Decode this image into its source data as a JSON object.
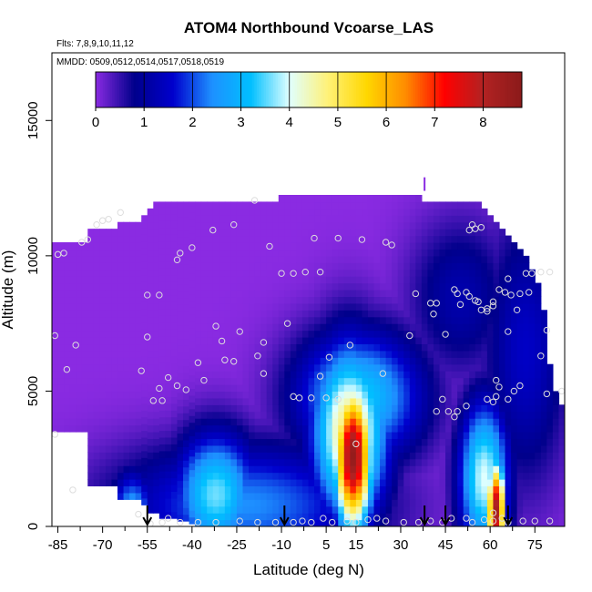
{
  "chart_data": {
    "type": "heatmap",
    "title": "ATOM4 Northbound Vcoarse_LAS",
    "flights_note": "Flts: 7,8,9,10,11,12",
    "date_note": "MMDD: 0509,0512,0514,0517,0518,0519",
    "xlabel": "Latitude (deg N)",
    "ylabel": "Altitude (m)",
    "xlim": [
      -87,
      85
    ],
    "ylim": [
      0,
      17500
    ],
    "x_ticks": [
      -85,
      -70,
      -55,
      -40,
      -25,
      -10,
      5,
      15,
      30,
      45,
      60,
      75
    ],
    "y_ticks": [
      0,
      5000,
      10000,
      15000
    ],
    "colorbar": {
      "min": 0,
      "max": 8.8,
      "ticks": [
        0,
        1,
        2,
        3,
        4,
        5,
        6,
        7,
        8
      ],
      "colors": [
        "#8A2BE2",
        "#00008B",
        "#0000CD",
        "#1E90FF",
        "#00BFFF",
        "#E0FFFF",
        "#FFF176",
        "#FFD700",
        "#FF8C00",
        "#FF0000",
        "#B22222",
        "#8B1A1A"
      ]
    },
    "field": {
      "lat_start": -86,
      "lat_step": 2,
      "alt_step": 250,
      "ceiling_m": [
        10500,
        10500,
        10500,
        10500,
        10500,
        10500,
        11000,
        11000,
        11000,
        11000,
        11000,
        11250,
        11250,
        11250,
        11250,
        11500,
        11750,
        12000,
        12000,
        12000,
        12000,
        12000,
        12000,
        12000,
        12000,
        12000,
        12000,
        12000,
        12000,
        12000,
        12000,
        12000,
        12000,
        12000,
        12000,
        12000,
        12000,
        12000,
        12250,
        12250,
        12250,
        12250,
        12250,
        12250,
        12250,
        12250,
        12250,
        12250,
        12250,
        12250,
        12250,
        12250,
        12250,
        12250,
        12250,
        12250,
        12250,
        12250,
        12250,
        12250,
        12250,
        12250,
        12000,
        12000,
        12000,
        12000,
        12000,
        12000,
        12000,
        12000,
        12000,
        12000,
        11750,
        11500,
        11250,
        11000,
        10750,
        10500,
        10250,
        10000,
        9500,
        9000,
        8000,
        6000,
        5000,
        4500
      ],
      "floor_m": [
        3500,
        3500,
        3500,
        3500,
        3500,
        3500,
        1500,
        1500,
        1500,
        1500,
        1500,
        1000,
        1000,
        1000,
        1000,
        800,
        500,
        500,
        300,
        300,
        300,
        200,
        200,
        100,
        0,
        0,
        0,
        0,
        0,
        0,
        0,
        0,
        0,
        0,
        0,
        0,
        0,
        0,
        0,
        0,
        0,
        0,
        0,
        0,
        0,
        0,
        0,
        0,
        0,
        0,
        0,
        0,
        0,
        0,
        0,
        0,
        0,
        0,
        0,
        0,
        0,
        0,
        0,
        0,
        0,
        0,
        0,
        0,
        0,
        0,
        0,
        0,
        0,
        0,
        0,
        0,
        0,
        0,
        0,
        0,
        0,
        0,
        0,
        0,
        0,
        0
      ]
    },
    "samples": [
      {
        "lat": -85,
        "alt": 10050
      },
      {
        "lat": -83,
        "alt": 10100
      },
      {
        "lat": -77,
        "alt": 10500
      },
      {
        "lat": -75,
        "alt": 10600
      },
      {
        "lat": -72,
        "alt": 11150
      },
      {
        "lat": -70,
        "alt": 11300
      },
      {
        "lat": -68,
        "alt": 11350
      },
      {
        "lat": -64,
        "alt": 11600
      },
      {
        "lat": -45,
        "alt": 9850
      },
      {
        "lat": -44,
        "alt": 10100
      },
      {
        "lat": -40,
        "alt": 10300
      },
      {
        "lat": -33,
        "alt": 10950
      },
      {
        "lat": -26,
        "alt": 11150
      },
      {
        "lat": -19,
        "alt": 12050
      },
      {
        "lat": -14,
        "alt": 10350
      },
      {
        "lat": 1,
        "alt": 10650
      },
      {
        "lat": 9,
        "alt": 10650
      },
      {
        "lat": 17,
        "alt": 10600
      },
      {
        "lat": 25,
        "alt": 10500
      },
      {
        "lat": 27,
        "alt": 10400
      },
      {
        "lat": -10,
        "alt": 9350
      },
      {
        "lat": -6,
        "alt": 9350
      },
      {
        "lat": -2,
        "alt": 9400
      },
      {
        "lat": 3,
        "alt": 9400
      },
      {
        "lat": 53,
        "alt": 10950
      },
      {
        "lat": 54,
        "alt": 11150
      },
      {
        "lat": 55,
        "alt": 11000
      },
      {
        "lat": 57,
        "alt": 11050
      },
      {
        "lat": -55,
        "alt": 8550
      },
      {
        "lat": -51,
        "alt": 8550
      },
      {
        "lat": -32,
        "alt": 7400
      },
      {
        "lat": -8,
        "alt": 7500
      },
      {
        "lat": -55,
        "alt": 7000
      },
      {
        "lat": -79,
        "alt": 6700
      },
      {
        "lat": -86,
        "alt": 7050
      },
      {
        "lat": -30,
        "alt": 6850
      },
      {
        "lat": -24,
        "alt": 7200
      },
      {
        "lat": -16,
        "alt": 6800
      },
      {
        "lat": -38,
        "alt": 6050
      },
      {
        "lat": -29,
        "alt": 6150
      },
      {
        "lat": -26,
        "alt": 6100
      },
      {
        "lat": -18,
        "alt": 6300
      },
      {
        "lat": -82,
        "alt": 5800
      },
      {
        "lat": -57,
        "alt": 5750
      },
      {
        "lat": -48,
        "alt": 5500
      },
      {
        "lat": -45,
        "alt": 5200
      },
      {
        "lat": -51,
        "alt": 5100
      },
      {
        "lat": -53,
        "alt": 4650
      },
      {
        "lat": -50,
        "alt": 4650
      },
      {
        "lat": -42,
        "alt": 5050
      },
      {
        "lat": -36,
        "alt": 5400
      },
      {
        "lat": -16,
        "alt": 5650
      },
      {
        "lat": -6,
        "alt": 4800
      },
      {
        "lat": -4,
        "alt": 4750
      },
      {
        "lat": 0,
        "alt": 4750
      },
      {
        "lat": 3,
        "alt": 5550
      },
      {
        "lat": 5,
        "alt": 4750
      },
      {
        "lat": 9,
        "alt": 4700
      },
      {
        "lat": 6,
        "alt": 6250
      },
      {
        "lat": 13,
        "alt": 6700
      },
      {
        "lat": 24,
        "alt": 5650
      },
      {
        "lat": 33,
        "alt": 7050
      },
      {
        "lat": 35,
        "alt": 8600
      },
      {
        "lat": 40,
        "alt": 8250
      },
      {
        "lat": 41,
        "alt": 7850
      },
      {
        "lat": 42,
        "alt": 8250
      },
      {
        "lat": 45,
        "alt": 7100
      },
      {
        "lat": 48,
        "alt": 8750
      },
      {
        "lat": 49,
        "alt": 8600
      },
      {
        "lat": 50,
        "alt": 8200
      },
      {
        "lat": 52,
        "alt": 8650
      },
      {
        "lat": 53,
        "alt": 8500
      },
      {
        "lat": 55,
        "alt": 8350
      },
      {
        "lat": 57,
        "alt": 8000
      },
      {
        "lat": 56,
        "alt": 8300
      },
      {
        "lat": 59,
        "alt": 8050
      },
      {
        "lat": 59,
        "alt": 7950
      },
      {
        "lat": 61,
        "alt": 8300
      },
      {
        "lat": 61,
        "alt": 8150
      },
      {
        "lat": 63,
        "alt": 8750
      },
      {
        "lat": 65,
        "alt": 8650
      },
      {
        "lat": 66,
        "alt": 9150
      },
      {
        "lat": 67,
        "alt": 8550
      },
      {
        "lat": 70,
        "alt": 8600
      },
      {
        "lat": 72,
        "alt": 9350
      },
      {
        "lat": 74,
        "alt": 9350
      },
      {
        "lat": 73,
        "alt": 8650
      },
      {
        "lat": 69,
        "alt": 8000
      },
      {
        "lat": 77,
        "alt": 9400
      },
      {
        "lat": 80,
        "alt": 9400
      },
      {
        "lat": 66,
        "alt": 7200
      },
      {
        "lat": 77,
        "alt": 6300
      },
      {
        "lat": 79,
        "alt": 7250
      },
      {
        "lat": 62,
        "alt": 5400
      },
      {
        "lat": 63,
        "alt": 5150
      },
      {
        "lat": 62,
        "alt": 4800
      },
      {
        "lat": 59,
        "alt": 4700
      },
      {
        "lat": 61,
        "alt": 4600
      },
      {
        "lat": 66,
        "alt": 4700
      },
      {
        "lat": 68,
        "alt": 5000
      },
      {
        "lat": 70,
        "alt": 5200
      },
      {
        "lat": 79,
        "alt": 4900
      },
      {
        "lat": 84,
        "alt": 5000
      },
      {
        "lat": 44,
        "alt": 4700
      },
      {
        "lat": 42,
        "alt": 4250
      },
      {
        "lat": 46,
        "alt": 4250
      },
      {
        "lat": 48,
        "alt": 4050
      },
      {
        "lat": 49,
        "alt": 4250
      },
      {
        "lat": 52,
        "alt": 4450
      },
      {
        "lat": 15,
        "alt": 3050
      },
      {
        "lat": -86,
        "alt": 3400
      },
      {
        "lat": -80,
        "alt": 1350
      },
      {
        "lat": -58,
        "alt": 450
      },
      {
        "lat": -54,
        "alt": 100
      },
      {
        "lat": -50,
        "alt": 150
      },
      {
        "lat": -48,
        "alt": 300
      },
      {
        "lat": -44,
        "alt": 150
      },
      {
        "lat": -38,
        "alt": 150
      },
      {
        "lat": -32,
        "alt": 150
      },
      {
        "lat": -24,
        "alt": 200
      },
      {
        "lat": -18,
        "alt": 150
      },
      {
        "lat": -12,
        "alt": 150
      },
      {
        "lat": -6,
        "alt": 150
      },
      {
        "lat": -3,
        "alt": 200
      },
      {
        "lat": 0,
        "alt": 150
      },
      {
        "lat": 4,
        "alt": 300
      },
      {
        "lat": 7,
        "alt": 150
      },
      {
        "lat": 12,
        "alt": 200
      },
      {
        "lat": 15,
        "alt": 150
      },
      {
        "lat": 19,
        "alt": 250
      },
      {
        "lat": 22,
        "alt": 300
      },
      {
        "lat": 25,
        "alt": 200
      },
      {
        "lat": 31,
        "alt": 150
      },
      {
        "lat": 36,
        "alt": 150
      },
      {
        "lat": 40,
        "alt": 200
      },
      {
        "lat": 44,
        "alt": 150
      },
      {
        "lat": 47,
        "alt": 300
      },
      {
        "lat": 52,
        "alt": 300
      },
      {
        "lat": 54,
        "alt": 150
      },
      {
        "lat": 58,
        "alt": 250
      },
      {
        "lat": 61,
        "alt": 500
      },
      {
        "lat": 61,
        "alt": 200
      },
      {
        "lat": 64,
        "alt": 300
      },
      {
        "lat": 66,
        "alt": 150
      },
      {
        "lat": 71,
        "alt": 200
      },
      {
        "lat": 75,
        "alt": 200
      },
      {
        "lat": 80,
        "alt": 200
      }
    ],
    "arrow_latitudes": [
      -55,
      -9,
      38,
      45,
      66
    ],
    "vertical_marker": {
      "lat": 38,
      "alt_min": 12400,
      "alt_max": 12900
    }
  }
}
